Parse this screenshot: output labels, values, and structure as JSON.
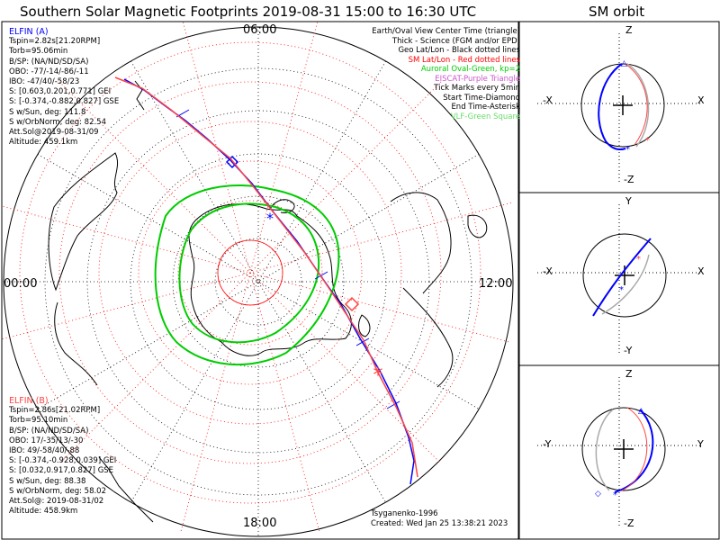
{
  "title": "Southern Solar Magnetic Footprints 2019-08-31 15:00 to 16:30 UTC",
  "sm_title": "SM orbit",
  "time_labels": {
    "top": "06:00",
    "bottom": "18:00",
    "left": "00:00",
    "right": "12:00"
  },
  "legend": [
    {
      "text": "Earth/Oval View Center Time (triangle)",
      "color": "#000000"
    },
    {
      "text": "Thick - Science (FGM and/or EPD)",
      "color": "#000000"
    },
    {
      "text": "Geo Lat/Lon - Black dotted lines",
      "color": "#000000"
    },
    {
      "text": "SM Lat/Lon - Red dotted lines",
      "color": "#ff0000"
    },
    {
      "text": "Auroral Oval-Green, kp=2",
      "color": "#00cc00"
    },
    {
      "text": "EISCAT-Purple Triangle",
      "color": "#cc55cc"
    },
    {
      "text": "Tick Marks every 5min",
      "color": "#000000"
    },
    {
      "text": "Start Time-Diamond",
      "color": "#000000"
    },
    {
      "text": "End Time-Asterisk",
      "color": "#000000"
    },
    {
      "text": "VLF-Green Square",
      "color": "#66dd66"
    }
  ],
  "elfin_a": {
    "name": "ELFIN (A)",
    "color": "#0000ff",
    "lines": [
      "Tspin=2.82s[21.20RPM]",
      "Torb=95.06min",
      "B/SP: (NA/ND/SD/SA)",
      "OBO: -77/-14/-86/-11",
      "IBO: -47/40/-58/23",
      "S: [0.603,0.201,0.771] GEI",
      "S: [-0.374,-0.882,0.827] GSE",
      "S w/Sun, deg: 111.8",
      "S w/OrbNorm, deg: 82.54",
      "Att.Sol@2019-08-31/09",
      "Altitude: 459.1km"
    ]
  },
  "elfin_b": {
    "name": "ELFIN (B)",
    "color": "#ff4444",
    "lines": [
      "Tspin=2.86s[21.02RPM]",
      "Torb=95.10min",
      "B/SP: (NA/ND/SD/SA)",
      "OBO: 17/-35/13/-30",
      "IBO: 49/-58/40/-88",
      "S: [-0.374,-0.928,0.039] GEI",
      "S: [0.032,0.917,0.827] GSE",
      "S w/Sun, deg: 88.38",
      "S w/OrbNorm, deg: 58.02",
      "Att.Sol@: 2019-08-31/02",
      "Altitude: 458.9km"
    ]
  },
  "credit": [
    "Tsyganenko-1996",
    "Created: Wed Jan 25 13:38:21 2023"
  ],
  "panels": [
    {
      "top": "Z",
      "bottom": "-Z",
      "left": "-X",
      "right": "X"
    },
    {
      "top": "Y",
      "bottom": "-Y",
      "left": "-X",
      "right": "X"
    },
    {
      "top": "Z",
      "bottom": "-Z",
      "left": "-Y",
      "right": "Y"
    }
  ],
  "colors": {
    "elfin_a": "#0000ff",
    "elfin_b": "#ff4444",
    "oval": "#00cc00",
    "sm_grid": "#ff0000"
  }
}
